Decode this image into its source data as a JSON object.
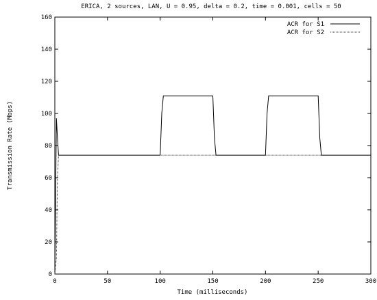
{
  "chart_data": {
    "type": "line",
    "title": "ERICA, 2 sources, LAN, U = 0.95, delta = 0.2, time = 0.001, cells = 50",
    "xlabel": "Time (milliseconds)",
    "ylabel": "Transmission Rate (Mbps)",
    "xlim": [
      0,
      300
    ],
    "ylim": [
      0,
      160
    ],
    "x_ticks": [
      "0",
      "50",
      "100",
      "150",
      "200",
      "250",
      "300"
    ],
    "y_ticks": [
      "0",
      "20",
      "40",
      "60",
      "80",
      "100",
      "120",
      "140",
      "160"
    ],
    "grid": false,
    "legend_position": "top-right",
    "series": [
      {
        "name": "ACR for S1",
        "style": "solid",
        "color": "#000000",
        "x": [
          0,
          1.5,
          2.5,
          3.5,
          5,
          100,
          101.5,
          103,
          150,
          151.5,
          153,
          200,
          201.5,
          203,
          250,
          251.5,
          253,
          300
        ],
        "y": [
          0,
          97,
          85,
          74,
          74,
          74,
          100,
          111,
          111,
          85,
          74,
          74,
          100,
          111,
          111,
          85,
          74,
          74
        ]
      },
      {
        "name": "ACR for S2",
        "style": "dotted",
        "color": "#333333",
        "x": [
          0,
          1.5,
          2.5,
          3.5,
          5,
          300
        ],
        "y": [
          0,
          10,
          60,
          74,
          74,
          74
        ]
      }
    ]
  }
}
